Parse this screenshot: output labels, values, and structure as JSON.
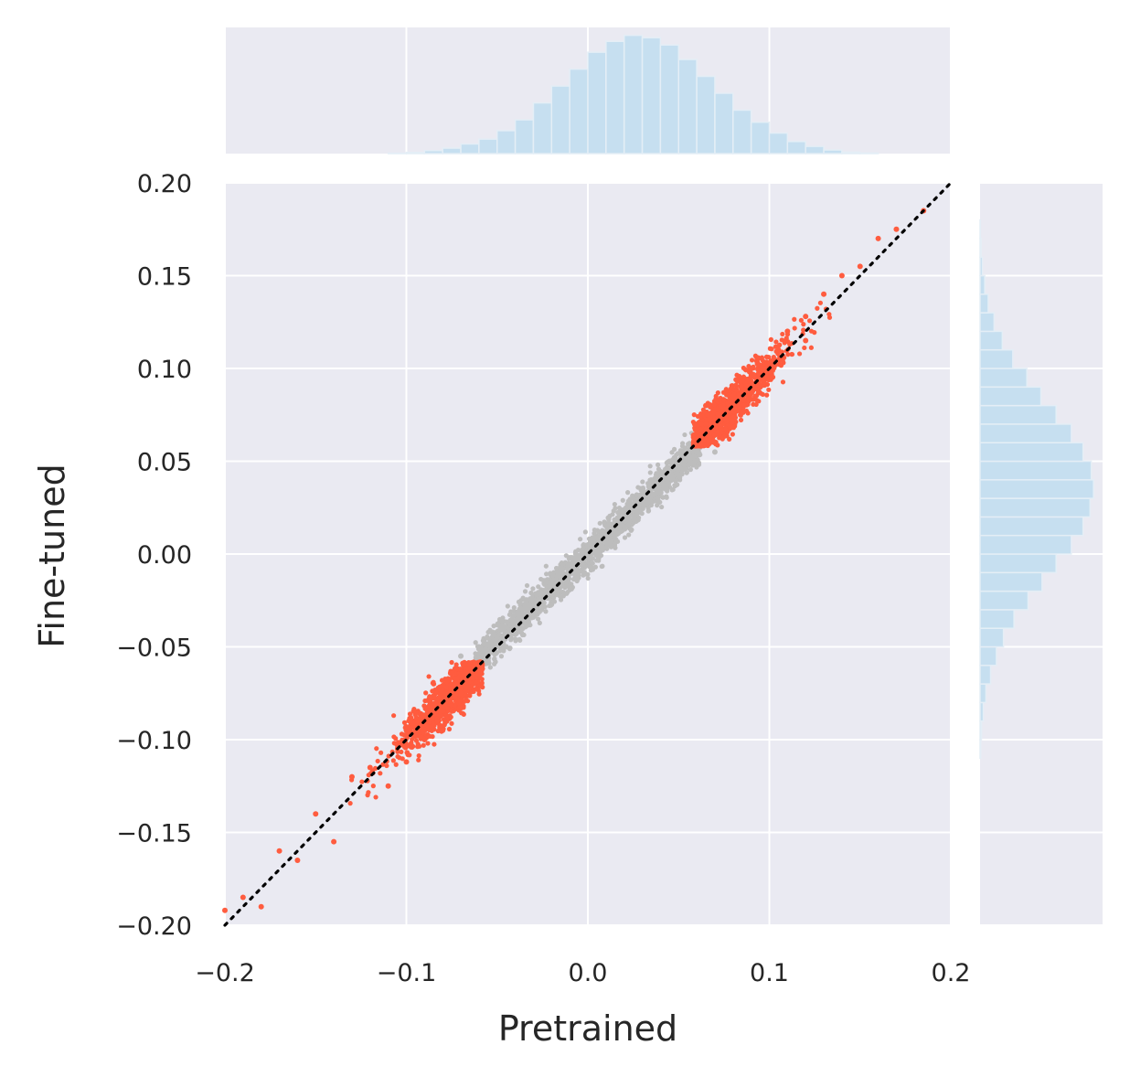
{
  "chart_data": {
    "type": "scatter",
    "title": "",
    "xlabel": "Pretrained",
    "ylabel": "Fine-tuned",
    "xlim": [
      -0.2,
      0.2
    ],
    "ylim": [
      -0.2,
      0.2
    ],
    "x_ticks": [
      -0.2,
      -0.1,
      0.0,
      0.1,
      0.2
    ],
    "x_tick_labels": [
      "−0.2",
      "−0.1",
      "0.0",
      "0.1",
      "0.2"
    ],
    "y_ticks": [
      -0.2,
      -0.15,
      -0.1,
      -0.05,
      0.0,
      0.05,
      0.1,
      0.15,
      0.2
    ],
    "y_tick_labels": [
      "−0.20",
      "−0.15",
      "−0.10",
      "−0.05",
      "0.00",
      "0.05",
      "0.10",
      "0.15",
      "0.20"
    ],
    "grid": true,
    "reference_line": {
      "style": "dotted",
      "color": "#000000",
      "from": [
        -0.2,
        -0.2
      ],
      "to": [
        0.2,
        0.2
      ]
    },
    "colors": {
      "background": "#eaeaf2",
      "grid": "#ffffff",
      "highlight_points": "#ff5c3f",
      "other_points": "#bdbdbd",
      "histogram": "#c6dff0",
      "histogram_edge": "#e4eef6"
    },
    "series": [
      {
        "values": [
          {
            "x": -0.14,
            "y": -0.155
          },
          {
            "x": -0.13,
            "y": -0.12
          },
          {
            "x": -0.12,
            "y": -0.115
          },
          {
            "x": -0.11,
            "y": -0.125
          },
          {
            "x": -0.1,
            "y": -0.112
          },
          {
            "x": -0.09,
            "y": -0.1
          },
          {
            "x": -0.08,
            "y": -0.095
          },
          {
            "x": -0.07,
            "y": -0.075
          },
          {
            "x": -0.06,
            "y": -0.065
          },
          {
            "x": -0.1,
            "y": -0.095
          },
          {
            "x": -0.18,
            "y": -0.19
          },
          {
            "x": -0.17,
            "y": -0.16
          },
          {
            "x": -0.16,
            "y": -0.165
          },
          {
            "x": -0.15,
            "y": -0.14
          },
          {
            "x": -0.19,
            "y": -0.185
          },
          {
            "x": -0.2,
            "y": -0.192
          },
          {
            "x": 0.07,
            "y": 0.06
          },
          {
            "x": 0.08,
            "y": 0.085
          },
          {
            "x": 0.09,
            "y": 0.1
          },
          {
            "x": 0.1,
            "y": 0.095
          },
          {
            "x": 0.11,
            "y": 0.12
          },
          {
            "x": 0.12,
            "y": 0.115
          },
          {
            "x": 0.13,
            "y": 0.14
          },
          {
            "x": 0.14,
            "y": 0.15
          },
          {
            "x": 0.15,
            "y": 0.155
          },
          {
            "x": 0.16,
            "y": 0.17
          },
          {
            "x": 0.17,
            "y": 0.175
          },
          {
            "x": 0.185,
            "y": 0.185
          },
          {
            "x": 0.065,
            "y": 0.08
          },
          {
            "x": 0.095,
            "y": 0.09
          },
          {
            "x": 0.12,
            "y": 0.128
          },
          {
            "x": 0.105,
            "y": 0.11
          }
        ]
      },
      {
        "values": [
          {
            "x": -0.06,
            "y": -0.05
          },
          {
            "x": -0.05,
            "y": -0.045
          },
          {
            "x": -0.04,
            "y": -0.04
          },
          {
            "x": -0.03,
            "y": -0.025
          },
          {
            "x": -0.02,
            "y": -0.02
          },
          {
            "x": -0.01,
            "y": -0.01
          },
          {
            "x": 0.0,
            "y": 0.0
          },
          {
            "x": 0.01,
            "y": 0.01
          },
          {
            "x": 0.02,
            "y": 0.02
          },
          {
            "x": 0.03,
            "y": 0.028
          },
          {
            "x": 0.04,
            "y": 0.04
          },
          {
            "x": 0.05,
            "y": 0.048
          },
          {
            "x": 0.06,
            "y": 0.055
          },
          {
            "x": 0.045,
            "y": 0.05
          },
          {
            "x": -0.045,
            "y": -0.05
          },
          {
            "x": -0.07,
            "y": -0.055
          },
          {
            "x": 0.07,
            "y": 0.055
          }
        ]
      }
    ],
    "marginal_x": {
      "bins": [
        -0.2,
        -0.19,
        -0.18,
        -0.17,
        -0.16,
        -0.15,
        -0.14,
        -0.13,
        -0.12,
        -0.11,
        -0.1,
        -0.09,
        -0.08,
        -0.07,
        -0.06,
        -0.05,
        -0.04,
        -0.03,
        -0.02,
        -0.01,
        0.0,
        0.01,
        0.02,
        0.03,
        0.04,
        0.05,
        0.06,
        0.07,
        0.08,
        0.09,
        0.1,
        0.11,
        0.12,
        0.13,
        0.14,
        0.15,
        0.16,
        0.17,
        0.18,
        0.19,
        0.2
      ],
      "counts": [
        0,
        0,
        0,
        0,
        0,
        0,
        0,
        0,
        0,
        0.003,
        0.01,
        0.025,
        0.045,
        0.08,
        0.12,
        0.19,
        0.28,
        0.42,
        0.56,
        0.7,
        0.84,
        0.93,
        0.98,
        0.96,
        0.9,
        0.78,
        0.64,
        0.5,
        0.36,
        0.26,
        0.17,
        0.1,
        0.06,
        0.03,
        0.012,
        0.004,
        0,
        0,
        0,
        0
      ]
    },
    "marginal_y": {
      "bins": [
        -0.2,
        -0.19,
        -0.18,
        -0.17,
        -0.16,
        -0.15,
        -0.14,
        -0.13,
        -0.12,
        -0.11,
        -0.1,
        -0.09,
        -0.08,
        -0.07,
        -0.06,
        -0.05,
        -0.04,
        -0.03,
        -0.02,
        -0.01,
        0.0,
        0.01,
        0.02,
        0.03,
        0.04,
        0.05,
        0.06,
        0.07,
        0.08,
        0.09,
        0.1,
        0.11,
        0.12,
        0.13,
        0.14,
        0.15,
        0.16,
        0.17,
        0.18,
        0.19,
        0.2
      ],
      "counts": [
        0,
        0,
        0,
        0,
        0,
        0,
        0,
        0,
        0,
        0.005,
        0.012,
        0.028,
        0.05,
        0.09,
        0.14,
        0.2,
        0.29,
        0.41,
        0.53,
        0.65,
        0.78,
        0.88,
        0.94,
        0.97,
        0.95,
        0.88,
        0.78,
        0.65,
        0.52,
        0.4,
        0.28,
        0.19,
        0.12,
        0.07,
        0.04,
        0.02,
        0.008,
        0.003,
        0,
        0
      ]
    }
  }
}
